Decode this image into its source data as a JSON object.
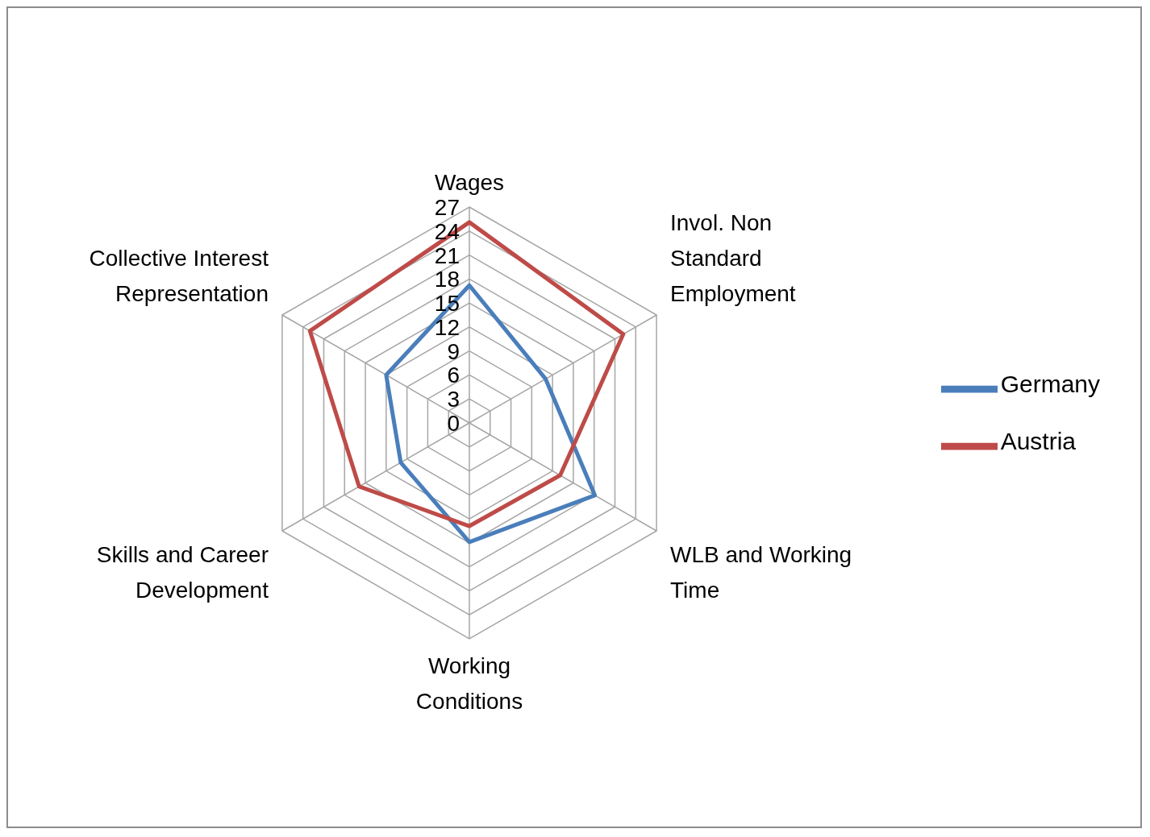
{
  "chart_data": {
    "type": "radar",
    "categories": [
      "Wages",
      "Invol. Non Standard Employment",
      "WLB and Working Time",
      "Working Conditions",
      "Skills and Career Development",
      "Collective Interest Representation"
    ],
    "series": [
      {
        "name": "Germany",
        "color": "#4a7ebb",
        "values": [
          17.2,
          11,
          18.1,
          14.9,
          9.9,
          12
        ]
      },
      {
        "name": "Austria",
        "color": "#be4b48",
        "values": [
          25.1,
          22.2,
          13.1,
          12.9,
          15.9,
          23
        ]
      }
    ],
    "ylim": [
      0,
      27
    ],
    "yticks": [
      0,
      3,
      6,
      9,
      12,
      15,
      18,
      21,
      24,
      27
    ],
    "grid": true,
    "legend": "right",
    "marker": "none",
    "line_style": "solid"
  }
}
